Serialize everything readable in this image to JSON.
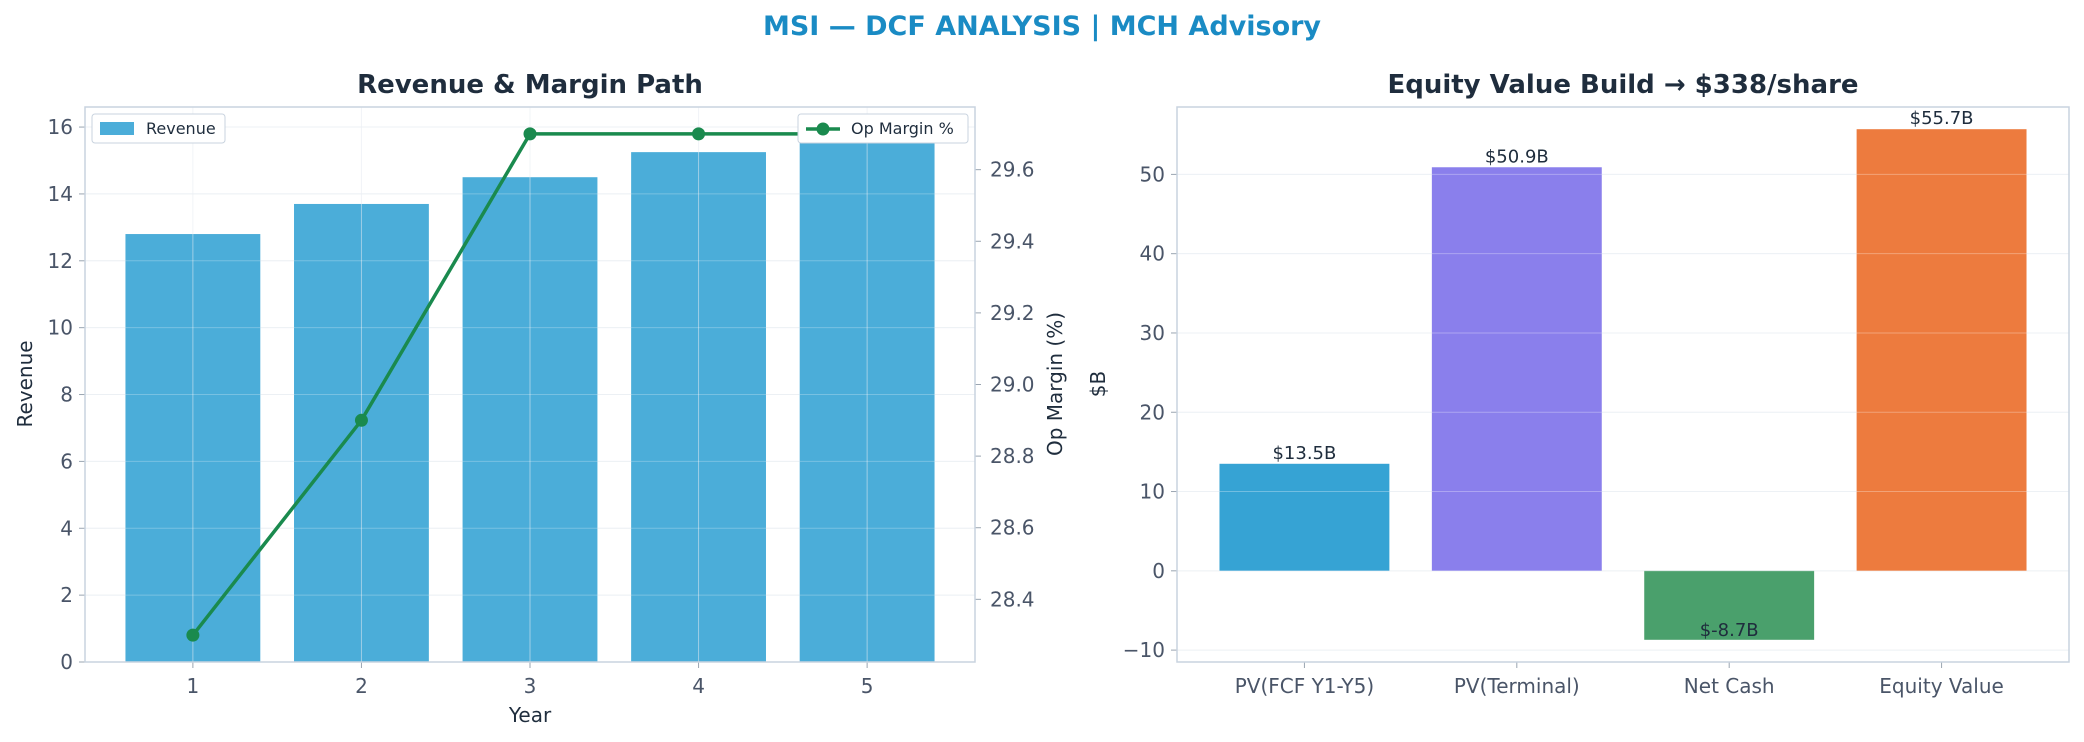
{
  "figure": {
    "title": "MSI — DCF ANALYSIS | MCH Advisory"
  },
  "colors": {
    "title": "#1a8bc4",
    "revenue_bar": "#4badd9",
    "margin_line": "#1a8a4e",
    "pv_fcf": "#36a3d4",
    "pv_terminal": "#8a7fec",
    "net_cash": "#4aa06c",
    "equity_value": "#ed7b3e"
  },
  "chart_data": [
    {
      "type": "bar",
      "title": "Revenue & Margin Path",
      "xlabel": "Year",
      "ylabel": "Revenue",
      "y2label": "Op Margin (%)",
      "categories": [
        "1",
        "2",
        "3",
        "4",
        "5"
      ],
      "ylim": [
        0,
        16.6
      ],
      "y2lim": [
        28.225,
        29.775
      ],
      "yticks": [
        "0",
        "2",
        "4",
        "6",
        "8",
        "10",
        "12",
        "14",
        "16"
      ],
      "y2ticks": [
        "28.4",
        "28.6",
        "28.8",
        "29.0",
        "29.2",
        "29.4",
        "29.6"
      ],
      "grid": true,
      "series": [
        {
          "name": "Revenue",
          "kind": "bar",
          "axis": "left",
          "values": [
            12.8,
            13.7,
            14.5,
            15.25,
            16.0
          ]
        },
        {
          "name": "Op Margin %",
          "kind": "line",
          "axis": "right",
          "values": [
            28.3,
            28.9,
            29.7,
            29.7,
            29.7
          ]
        }
      ],
      "legend": [
        {
          "label": "Revenue",
          "placement": "top-left"
        },
        {
          "label": "Op Margin %",
          "placement": "top-right"
        }
      ]
    },
    {
      "type": "bar",
      "title": "Equity Value Build → $338/share",
      "xlabel": "",
      "ylabel": "$B",
      "categories": [
        "PV(FCF Y1-Y5)",
        "PV(Terminal)",
        "Net Cash",
        "Equity Value"
      ],
      "values": [
        13.5,
        50.9,
        -8.7,
        55.7
      ],
      "data_labels": [
        "$13.5B",
        "$50.9B",
        "$-8.7B",
        "$55.7B"
      ],
      "ylim": [
        -11.5,
        58.5
      ],
      "yticks": [
        "−10",
        "0",
        "10",
        "20",
        "30",
        "40",
        "50"
      ],
      "grid": true
    }
  ]
}
